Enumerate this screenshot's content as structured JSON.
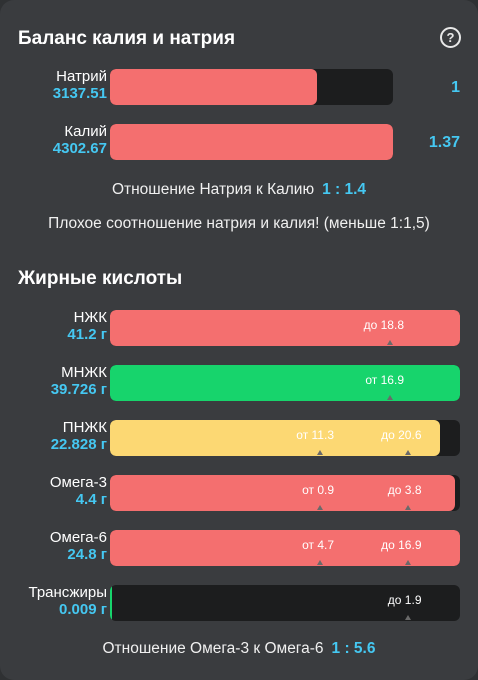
{
  "balance": {
    "title": "Баланс калия и натрия",
    "help_icon": "question-circle-icon",
    "sodium": {
      "name": "Натрий",
      "value": "3137.51",
      "ratio": "1",
      "fill": 0.73
    },
    "potassium": {
      "name": "Калий",
      "value": "4302.67",
      "ratio": "1.37",
      "fill": 1.0
    },
    "ratio_label": "Отношение Натрия к Калию",
    "ratio_value": "1 : 1.4",
    "warning": "Плохое соотношение натрия и калия! (меньше 1:1,5)"
  },
  "fats": {
    "title": "Жирные кислоты",
    "rows": [
      {
        "name": "НЖК",
        "value": "41.2 г",
        "fill": 1.0,
        "color": "#f46f6f",
        "markers": [
          {
            "text": "до 18.8",
            "pos": 0.8
          }
        ]
      },
      {
        "name": "МНЖК",
        "value": "39.726 г",
        "fill": 1.0,
        "color": "#17d46c",
        "markers": [
          {
            "text": "от 16.9",
            "pos": 0.8
          }
        ]
      },
      {
        "name": "ПНЖК",
        "value": "22.828 г",
        "fill": 0.943,
        "color": "#fcd873",
        "markers": [
          {
            "text": "от 11.3",
            "pos": 0.6
          },
          {
            "text": "до 20.6",
            "pos": 0.85
          }
        ]
      },
      {
        "name": "Омега-3",
        "value": "4.4 г",
        "fill": 0.985,
        "color": "#f46f6f",
        "markers": [
          {
            "text": "от 0.9",
            "pos": 0.6
          },
          {
            "text": "до 3.8",
            "pos": 0.85
          }
        ]
      },
      {
        "name": "Омега-6",
        "value": "24.8 г",
        "fill": 1.0,
        "color": "#f46f6f",
        "markers": [
          {
            "text": "от 4.7",
            "pos": 0.6
          },
          {
            "text": "до 16.9",
            "pos": 0.85
          }
        ]
      },
      {
        "name": "Трансжиры",
        "value": "0.009 г",
        "fill": 0.004,
        "color": "#17d46c",
        "markers": [
          {
            "text": "до 1.9",
            "pos": 0.85
          }
        ]
      }
    ],
    "ratio_label": "Отношение Омега-3 к Омега-6",
    "ratio_value": "1 : 5.6"
  }
}
